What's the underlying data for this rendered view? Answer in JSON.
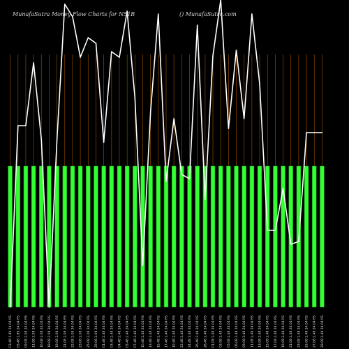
{
  "header": {
    "title": "MunafaSutra  Money Flow  Charts for N51B",
    "brand": "() MunafaSutra.com"
  },
  "colors": {
    "background": "#000000",
    "bar": "#33ff33",
    "bar_border": "#1a9f1a",
    "line": "#ffffff",
    "grid": "#8a4a00"
  },
  "chart_data": {
    "type": "bar",
    "title": "MunafaSutra  Money Flow  Charts for N51B",
    "grid": true,
    "categories": [
      "03.48 1.89 24.04 RS",
      "05.48 1.89 24.04 RS",
      "09.08 2.08 24.04 RS",
      "11.08 2.08 24.04 RS",
      "16.08 2.08 24.04 RS",
      "18.08 2.08 24.04 RS",
      "19.08 2.08 24.04 RS",
      "21.08 2.08 24.04 RS",
      "22.08 2.08 24.04 RS",
      "23.08 2.08 24.04 RS",
      "25.08 2.08 24.04 RS",
      "29.08 2.08 24.04 RS",
      "01.48 2.48 24.04 RS",
      "03.48 2.48 24.04 RS",
      "04.48 2.48 24.04 RS",
      "05.48 2.48 24.04 RS",
      "07.48 2.48 24.04 RS",
      "10.48 2.48 24.04 RS",
      "13.48 2.48 24.04 RS",
      "15.48 2.48 24.04 RS",
      "17.48 2.48 24.04 RS",
      "19.48 2.48 24.04 RS",
      "22.48 2.48 24.04 RS",
      "24.48 2.48 24.04 RS",
      "26.48 2.48 24.04 RS",
      "28.48 2.48 24.04 RS",
      "01.08 2.48 24.04 RS",
      "03.08 2.48 24.04 RS",
      "05.08 2.48 24.04 RS",
      "06.08 2.48 24.04 RS",
      "09.08 2.48 24.04 RS",
      "11.08 2.48 24.04 RS",
      "13.08 2.48 24.04 RS",
      "15.08 2.48 24.04 RS",
      "17.08 2.48 24.04 RS",
      "19.08 2.48 24.04 RS",
      "21.08 2.48 24.04 RS",
      "23.08 2.48 24.04 RS",
      "25.08 2.48 24.04 RS",
      "27.08 2.48 24.04 RS",
      "29.08 2.48 24.04 RS"
    ],
    "series": [
      {
        "values": [
          1,
          1,
          1,
          1,
          1,
          1,
          1,
          1,
          1,
          1,
          1,
          1,
          1,
          1,
          1,
          1,
          1,
          1,
          1,
          1,
          1,
          1,
          1,
          1,
          1,
          1,
          1,
          1,
          1,
          1,
          1,
          1,
          1,
          1,
          1,
          1,
          1,
          1,
          1,
          1,
          1
        ]
      },
      {
        "values": [
          0.0,
          1.3,
          1.3,
          1.75,
          1.2,
          0.0,
          1.2,
          2.17,
          2.08,
          1.79,
          1.93,
          1.89,
          1.18,
          1.83,
          1.79,
          2.12,
          1.5,
          0.3,
          1.4,
          2.1,
          0.9,
          1.35,
          0.95,
          0.92,
          2.02,
          0.77,
          1.8,
          2.2,
          1.28,
          1.84,
          1.35,
          2.1,
          1.6,
          0.55,
          0.55,
          0.85,
          0.45,
          0.47,
          1.25,
          1.25,
          1.25
        ]
      }
    ],
    "ylim": [
      0,
      2.2
    ]
  }
}
